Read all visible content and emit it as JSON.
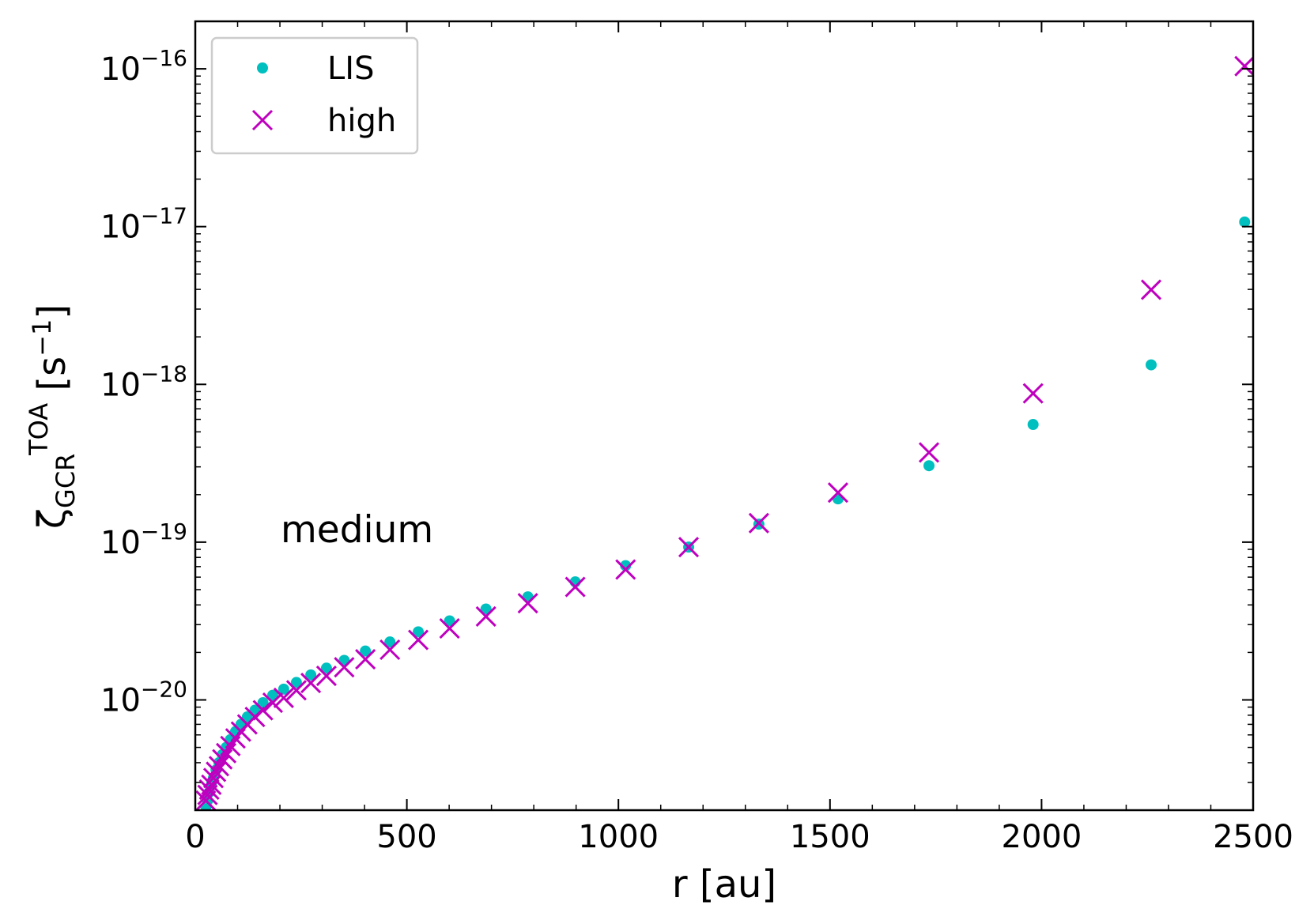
{
  "chart_data": {
    "type": "scatter",
    "xlabel": "r [au]",
    "ylabel": [
      {
        "text": "ζ"
      },
      {
        "text": "GCR",
        "sub": true
      },
      {
        "text": "TOA",
        "sup": true
      },
      {
        "text": " [s"
      },
      {
        "text": "−1",
        "sup": true
      },
      {
        "text": "]"
      }
    ],
    "annotation": "medium",
    "annotation_color": "#ff0000",
    "xlim": [
      0,
      2500
    ],
    "xticks": [
      0,
      500,
      1000,
      1500,
      2000,
      2500
    ],
    "ylim": [
      2e-21,
      2e-16
    ],
    "ylog": true,
    "yticks": [
      {
        "value": 1e-20,
        "label": "10−20"
      },
      {
        "value": 1e-19,
        "label": "10−19"
      },
      {
        "value": 1e-18,
        "label": "10−18"
      },
      {
        "value": 1e-17,
        "label": "10−17"
      },
      {
        "value": 1e-16,
        "label": "10−16"
      }
    ],
    "minor_ticks": true,
    "legend": "upper left",
    "x": [
      25,
      29,
      33,
      38,
      43,
      49,
      56,
      64,
      73,
      83,
      95,
      108,
      123,
      141,
      160,
      183,
      209,
      239,
      273,
      310,
      352,
      402,
      460,
      527,
      601,
      687,
      786,
      898,
      1017,
      1166,
      1332,
      1519,
      1734,
      1980,
      2259,
      2480
    ],
    "series": [
      {
        "name": "LIS",
        "color": "#00bfbf",
        "marker": "dot",
        "values": [
          2.1e-21,
          2.3e-21,
          2.6e-21,
          2.9e-21,
          3.2e-21,
          3.6e-21,
          4e-21,
          4.5e-21,
          5e-21,
          5.6e-21,
          6.3e-21,
          7e-21,
          7.8e-21,
          8.6e-21,
          9.6e-21,
          1.07e-20,
          1.17e-20,
          1.29e-20,
          1.44e-20,
          1.59e-20,
          1.78e-20,
          2.04e-20,
          2.33e-20,
          2.7e-20,
          3.17e-20,
          3.77e-20,
          4.5e-20,
          5.6e-20,
          7.1e-20,
          9.3e-20,
          1.3e-19,
          1.88e-19,
          3.05e-19,
          5.57e-19,
          1.33e-18,
          1.07e-17
        ]
      },
      {
        "name": "high",
        "color": "#bf00bf",
        "marker": "x",
        "values": [
          2.3e-21,
          2.5e-21,
          2.7e-21,
          2.9e-21,
          3.2e-21,
          3.5e-21,
          3.8e-21,
          4.2e-21,
          4.6e-21,
          5.1e-21,
          5.7e-21,
          6.3e-21,
          7e-21,
          7.8e-21,
          8.6e-21,
          9.6e-21,
          1.03e-20,
          1.15e-20,
          1.28e-20,
          1.42e-20,
          1.61e-20,
          1.81e-20,
          2.08e-20,
          2.4e-20,
          2.84e-20,
          3.38e-20,
          4.1e-20,
          5.2e-20,
          6.7e-20,
          9.3e-20,
          1.32e-19,
          2.06e-19,
          3.7e-19,
          8.77e-19,
          3.98e-18,
          1.04e-16
        ]
      }
    ]
  }
}
